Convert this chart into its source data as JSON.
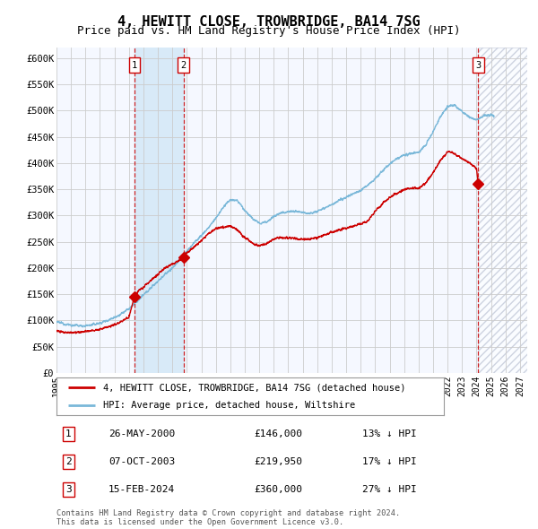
{
  "title": "4, HEWITT CLOSE, TROWBRIDGE, BA14 7SG",
  "subtitle": "Price paid vs. HM Land Registry's House Price Index (HPI)",
  "title_fontsize": 11,
  "subtitle_fontsize": 9,
  "background_color": "#ffffff",
  "plot_bg_color": "#f5f8ff",
  "grid_color": "#cccccc",
  "hpi_line_color": "#7ab8d9",
  "price_line_color": "#cc0000",
  "marker_color": "#cc0000",
  "ylim": [
    0,
    620000
  ],
  "yticks": [
    0,
    50000,
    100000,
    150000,
    200000,
    250000,
    300000,
    350000,
    400000,
    450000,
    500000,
    550000,
    600000
  ],
  "ytick_labels": [
    "£0",
    "£50K",
    "£100K",
    "£150K",
    "£200K",
    "£250K",
    "£300K",
    "£350K",
    "£400K",
    "£450K",
    "£500K",
    "£550K",
    "£600K"
  ],
  "sales": [
    {
      "id": 1,
      "date_label": "26-MAY-2000",
      "date_num": 2000.38,
      "price": 146000,
      "pct": "13%",
      "direction": "↓"
    },
    {
      "id": 2,
      "date_label": "07-OCT-2003",
      "date_num": 2003.77,
      "price": 219950,
      "pct": "17%",
      "direction": "↓"
    },
    {
      "id": 3,
      "date_label": "15-FEB-2024",
      "date_num": 2024.12,
      "price": 360000,
      "pct": "27%",
      "direction": "↓"
    }
  ],
  "legend_entries": [
    {
      "label": "4, HEWITT CLOSE, TROWBRIDGE, BA14 7SG (detached house)",
      "color": "#cc0000"
    },
    {
      "label": "HPI: Average price, detached house, Wiltshire",
      "color": "#7ab8d9"
    }
  ],
  "footer_lines": [
    "Contains HM Land Registry data © Crown copyright and database right 2024.",
    "This data is licensed under the Open Government Licence v3.0."
  ],
  "xmin": 1995.0,
  "xmax": 2027.5,
  "xtick_years": [
    1995,
    1996,
    1997,
    1998,
    1999,
    2000,
    2001,
    2002,
    2003,
    2004,
    2005,
    2006,
    2007,
    2008,
    2009,
    2010,
    2011,
    2012,
    2013,
    2014,
    2015,
    2016,
    2017,
    2018,
    2019,
    2020,
    2021,
    2022,
    2023,
    2024,
    2025,
    2026,
    2027
  ],
  "hatch_region_start": 2024.12,
  "hatch_region_end": 2027.5,
  "shade_region_start": 2000.38,
  "shade_region_end": 2003.77
}
